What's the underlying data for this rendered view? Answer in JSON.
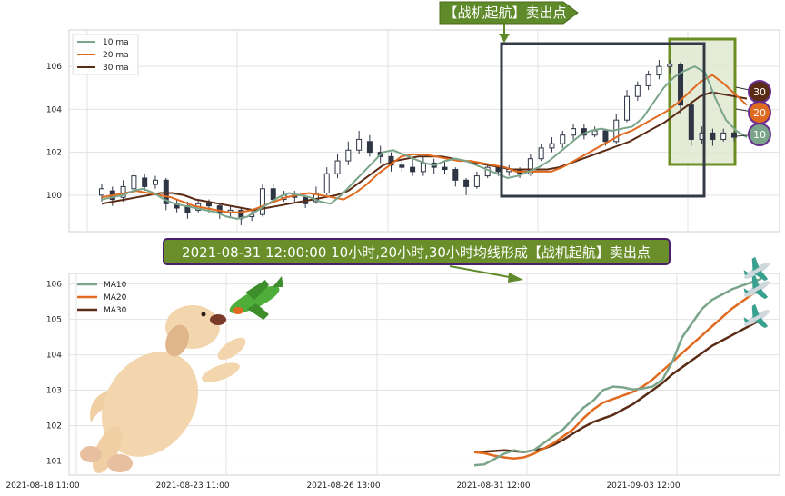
{
  "top_callout": "【战机起航】卖出点",
  "banner": "2021-08-31 12:00:00 10小时,20小时,30小时均线形成【战机起航】卖出点",
  "colors": {
    "ma10": "#7aa58a",
    "ma20": "#e06a1f",
    "ma30": "#5a2c15",
    "candle": "#2e3545",
    "callout_bg": "#5f8a2a",
    "banner_bg": "#6a8f2a",
    "banner_border": "#4a1f6e",
    "dark_box": "#333a45",
    "green_box": "#6b8e23",
    "green_box_fill": "#dfe8d0"
  },
  "badges": [
    "30",
    "20",
    "10"
  ],
  "chart_data": [
    {
      "type": "candlestick",
      "title": "",
      "legend": [
        "10 ma",
        "20 ma",
        "30 ma"
      ],
      "legend_placement": "top-left",
      "yticks": [
        100,
        102,
        104,
        106
      ],
      "ylim": [
        98.3,
        107.7
      ],
      "grid": true,
      "x_index_range": [
        0,
        199
      ],
      "ma10": [
        99.8,
        99.9,
        100.0,
        100.2,
        100.3,
        100.1,
        99.8,
        99.6,
        99.5,
        99.4,
        99.3,
        99.2,
        99.0,
        98.9,
        99.0,
        99.3,
        99.6,
        99.9,
        100.1,
        100.0,
        99.9,
        99.7,
        99.6,
        100.0,
        100.5,
        101.0,
        101.5,
        102.0,
        102.1,
        101.9,
        101.7,
        101.5,
        101.4,
        101.6,
        101.7,
        101.6,
        101.4,
        101.2,
        101.0,
        100.8,
        100.9,
        101.1,
        101.3,
        101.6,
        102.0,
        102.4,
        102.8,
        103.0,
        103.1,
        103.0,
        103.1,
        103.2,
        103.6,
        104.3,
        105.0,
        105.5,
        105.8,
        106.0,
        105.7,
        104.5,
        103.5,
        103.0,
        102.7
      ],
      "ma20": [
        99.9,
        100.0,
        100.1,
        100.2,
        100.1,
        100.0,
        99.9,
        99.7,
        99.5,
        99.4,
        99.3,
        99.2,
        99.2,
        99.3,
        99.5,
        99.7,
        99.9,
        100.0,
        100.1,
        100.0,
        99.9,
        99.8,
        100.1,
        100.5,
        101.0,
        101.4,
        101.8,
        101.9,
        101.9,
        101.8,
        101.7,
        101.6,
        101.6,
        101.5,
        101.4,
        101.3,
        101.1,
        101.1,
        101.1,
        101.1,
        101.3,
        101.6,
        101.9,
        102.2,
        102.5,
        102.8,
        103.0,
        103.3,
        103.6,
        103.9,
        104.3,
        104.8,
        105.3,
        105.6,
        105.2,
        104.7,
        104.2
      ],
      "ma30": [
        99.6,
        99.7,
        99.8,
        99.9,
        100.0,
        100.1,
        100.1,
        100.0,
        99.8,
        99.7,
        99.6,
        99.5,
        99.4,
        99.3,
        99.4,
        99.5,
        99.6,
        99.7,
        99.8,
        99.9,
        100.0,
        100.2,
        100.6,
        101.0,
        101.4,
        101.6,
        101.7,
        101.8,
        101.8,
        101.8,
        101.7,
        101.6,
        101.5,
        101.4,
        101.3,
        101.2,
        101.2,
        101.2,
        101.2,
        101.3,
        101.5,
        101.7,
        101.9,
        102.1,
        102.3,
        102.5,
        102.8,
        103.1,
        103.4,
        103.8,
        104.2,
        104.6,
        104.8,
        104.7,
        104.6,
        104.5
      ],
      "candles": [
        [
          100.0,
          100.3,
          99.7,
          100.5
        ],
        [
          100.2,
          99.8,
          99.5,
          100.4
        ],
        [
          99.9,
          100.4,
          99.7,
          100.7
        ],
        [
          100.3,
          100.9,
          100.1,
          101.2
        ],
        [
          100.8,
          100.4,
          100.2,
          101.0
        ],
        [
          100.5,
          100.7,
          100.3,
          100.9
        ],
        [
          100.7,
          99.6,
          99.3,
          100.8
        ],
        [
          99.6,
          99.4,
          99.2,
          99.8
        ],
        [
          99.5,
          99.2,
          98.9,
          99.7
        ],
        [
          99.3,
          99.6,
          99.2,
          99.8
        ],
        [
          99.6,
          99.5,
          99.2,
          99.8
        ],
        [
          99.5,
          99.2,
          98.9,
          99.6
        ],
        [
          99.2,
          99.3,
          99.0,
          99.5
        ],
        [
          99.3,
          98.9,
          98.6,
          99.4
        ],
        [
          99.0,
          99.1,
          98.8,
          99.3
        ],
        [
          99.1,
          100.3,
          99.0,
          100.5
        ],
        [
          100.3,
          99.8,
          99.6,
          100.5
        ],
        [
          99.8,
          100.0,
          99.7,
          100.2
        ],
        [
          100.0,
          99.9,
          99.7,
          100.2
        ],
        [
          99.9,
          99.6,
          99.4,
          100.0
        ],
        [
          99.7,
          100.1,
          99.6,
          100.4
        ],
        [
          100.1,
          101.0,
          100.0,
          101.3
        ],
        [
          101.0,
          101.6,
          100.8,
          101.9
        ],
        [
          101.6,
          102.1,
          101.4,
          102.5
        ],
        [
          102.1,
          102.6,
          101.9,
          103.0
        ],
        [
          102.5,
          102.0,
          101.8,
          102.8
        ],
        [
          102.0,
          101.8,
          101.5,
          102.3
        ],
        [
          101.8,
          101.4,
          101.1,
          102.0
        ],
        [
          101.4,
          101.3,
          101.1,
          101.6
        ],
        [
          101.3,
          101.1,
          100.9,
          101.7
        ],
        [
          101.1,
          101.5,
          100.9,
          101.8
        ],
        [
          101.5,
          101.3,
          101.0,
          101.7
        ],
        [
          101.3,
          101.2,
          101.0,
          101.6
        ],
        [
          101.2,
          100.7,
          100.4,
          101.3
        ],
        [
          100.7,
          100.4,
          100.0,
          100.8
        ],
        [
          100.4,
          100.9,
          100.3,
          101.1
        ],
        [
          100.9,
          101.3,
          100.8,
          101.5
        ],
        [
          101.3,
          101.1,
          100.9,
          101.4
        ],
        [
          101.1,
          101.2,
          100.9,
          101.4
        ],
        [
          101.2,
          101.0,
          100.8,
          101.3
        ],
        [
          101.0,
          101.7,
          100.9,
          101.9
        ],
        [
          101.7,
          102.2,
          101.6,
          102.4
        ],
        [
          102.2,
          102.4,
          102.0,
          102.7
        ],
        [
          102.4,
          102.8,
          102.2,
          103.0
        ],
        [
          102.8,
          103.1,
          102.6,
          103.3
        ],
        [
          103.1,
          102.8,
          102.6,
          103.3
        ],
        [
          102.8,
          103.0,
          102.7,
          103.2
        ],
        [
          103.0,
          102.5,
          102.3,
          103.1
        ],
        [
          102.5,
          103.5,
          102.4,
          103.8
        ],
        [
          103.5,
          104.6,
          103.4,
          104.9
        ],
        [
          104.6,
          105.1,
          104.4,
          105.3
        ],
        [
          105.1,
          105.6,
          104.9,
          105.8
        ],
        [
          105.6,
          106.0,
          105.4,
          106.3
        ],
        [
          106.0,
          106.1,
          105.7,
          106.3
        ],
        [
          106.1,
          104.2,
          103.8,
          106.2
        ],
        [
          104.2,
          102.6,
          102.3,
          104.4
        ],
        [
          102.6,
          102.9,
          102.4,
          103.2
        ],
        [
          102.9,
          102.6,
          102.3,
          103.1
        ],
        [
          102.6,
          102.9,
          102.5,
          103.1
        ],
        [
          102.9,
          102.7,
          102.5,
          103.0
        ]
      ]
    },
    {
      "type": "line",
      "title": "",
      "legend": [
        "MA10",
        "MA20",
        "MA30"
      ],
      "legend_placement": "top-left",
      "xticks": [
        "2021-08-18 11:00",
        "2021-08-23 11:00",
        "2021-08-26 13:00",
        "2021-08-31 12:00",
        "2021-09-03 12:00"
      ],
      "yticks": [
        101,
        102,
        103,
        104,
        105,
        106
      ],
      "ylim": [
        100.6,
        106.3
      ],
      "grid": true,
      "series": [
        {
          "name": "MA10",
          "x": [
            40,
            41,
            42,
            43,
            44,
            45,
            46,
            47,
            48,
            49,
            50,
            51,
            52,
            53,
            54,
            55,
            56,
            57,
            58,
            59,
            60,
            61,
            62,
            63,
            64,
            65,
            66,
            67,
            68,
            69
          ],
          "values": [
            100.88,
            100.9,
            101.05,
            101.2,
            101.3,
            101.25,
            101.3,
            101.5,
            101.7,
            101.9,
            102.2,
            102.5,
            102.7,
            103.0,
            103.1,
            103.08,
            103.02,
            103.05,
            103.1,
            103.3,
            103.8,
            104.5,
            104.9,
            105.3,
            105.55,
            105.7,
            105.85,
            105.95,
            106.05,
            106.15
          ]
        },
        {
          "name": "MA20",
          "x": [
            40,
            41,
            42,
            43,
            44,
            45,
            46,
            47,
            48,
            49,
            50,
            51,
            52,
            53,
            54,
            55,
            56,
            57,
            58,
            59,
            60,
            61,
            62,
            63,
            64,
            65,
            66,
            67,
            68,
            69
          ],
          "values": [
            101.25,
            101.22,
            101.15,
            101.1,
            101.07,
            101.1,
            101.2,
            101.35,
            101.5,
            101.7,
            101.9,
            102.2,
            102.45,
            102.65,
            102.75,
            102.85,
            102.95,
            103.1,
            103.3,
            103.55,
            103.8,
            104.05,
            104.3,
            104.55,
            104.8,
            105.05,
            105.3,
            105.5,
            105.7,
            105.85
          ]
        },
        {
          "name": "MA30",
          "x": [
            40,
            41,
            42,
            43,
            44,
            45,
            46,
            47,
            48,
            49,
            50,
            51,
            52,
            53,
            54,
            55,
            56,
            57,
            58,
            59,
            60,
            61,
            62,
            63,
            64,
            65,
            66,
            67,
            68,
            69
          ],
          "values": [
            101.25,
            101.26,
            101.28,
            101.3,
            101.28,
            101.25,
            101.3,
            101.35,
            101.45,
            101.6,
            101.78,
            101.95,
            102.1,
            102.2,
            102.3,
            102.45,
            102.6,
            102.8,
            103.0,
            103.2,
            103.45,
            103.65,
            103.85,
            104.05,
            104.25,
            104.4,
            104.55,
            104.7,
            104.85,
            105.0
          ]
        }
      ]
    }
  ]
}
